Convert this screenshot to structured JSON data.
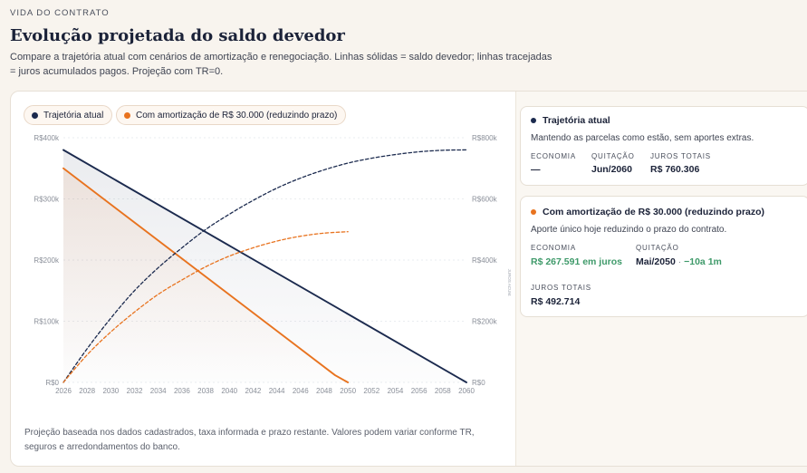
{
  "header": {
    "eyebrow": "VIDA DO CONTRATO",
    "title": "Evolução projetada do saldo devedor",
    "subtitle": "Compare a trajetória atual com cenários de amortização e renegociação. Linhas sólidas = saldo devedor; linhas tracejadas = juros acumulados pagos. Projeção com TR=0."
  },
  "legend": {
    "items": [
      {
        "label": "Trajetória atual",
        "color": "#1b2a4e"
      },
      {
        "label": "Com amortização de R$ 30.000 (reduzindo prazo)",
        "color": "#e8731f"
      }
    ]
  },
  "footnote": "Projeção baseada nos dados cadastrados, taxa informada e prazo restante. Valores podem variar conforme TR, seguros e arredondamentos do banco.",
  "chart_data": {
    "type": "line",
    "x_ticks": [
      "2026",
      "2028",
      "2030",
      "2032",
      "2034",
      "2036",
      "2038",
      "2040",
      "2042",
      "2044",
      "2046",
      "2048",
      "2050",
      "2052",
      "2054",
      "2056",
      "2058",
      "2060"
    ],
    "xlim": [
      2026,
      2060
    ],
    "y_left": {
      "ticks": [
        "R$0",
        "R$100k",
        "R$200k",
        "R$300k",
        "R$400k"
      ],
      "lim": [
        0,
        400000
      ],
      "label": ""
    },
    "y_right": {
      "ticks": [
        "R$0",
        "R$200k",
        "R$400k",
        "R$600k",
        "R$800k"
      ],
      "lim": [
        0,
        800000
      ],
      "label": "JUROS ACUM."
    },
    "series": [
      {
        "name": "Trajetória atual",
        "kind": "saldo",
        "axis": "left",
        "color": "#1b2a4e",
        "style": "solid",
        "x": [
          2026,
          2060
        ],
        "y": [
          380000,
          0
        ]
      },
      {
        "name": "Com amortização de R$ 30.000 (reduzindo prazo)",
        "kind": "saldo",
        "axis": "left",
        "color": "#e8731f",
        "style": "solid",
        "x": [
          2026,
          2048.9,
          2050
        ],
        "y": [
          350000,
          12000,
          0
        ]
      },
      {
        "name": "Trajetória atual",
        "kind": "juros",
        "axis": "right",
        "color": "#1b2a4e",
        "style": "dashed",
        "x": [
          2026,
          2028,
          2030,
          2032,
          2034,
          2036,
          2038,
          2040,
          2042,
          2044,
          2046,
          2048,
          2050,
          2052,
          2054,
          2056,
          2058,
          2060
        ],
        "y": [
          0,
          110000,
          210000,
          300000,
          375000,
          440000,
          500000,
          550000,
          595000,
          635000,
          668000,
          695000,
          717000,
          733000,
          745000,
          754000,
          759000,
          760306
        ]
      },
      {
        "name": "Com amortização de R$ 30.000 (reduzindo prazo)",
        "kind": "juros",
        "axis": "right",
        "color": "#e8731f",
        "style": "dashed",
        "x": [
          2026,
          2028,
          2030,
          2032,
          2034,
          2036,
          2038,
          2040,
          2042,
          2044,
          2046,
          2048,
          2050
        ],
        "y": [
          0,
          90000,
          165000,
          230000,
          288000,
          335000,
          378000,
          413000,
          440000,
          462000,
          478000,
          488000,
          492714
        ]
      }
    ]
  },
  "cards": [
    {
      "title": "Trajetória atual",
      "color": "#1b2a4e",
      "description": "Mantendo as parcelas como estão, sem aportes extras.",
      "stats": [
        {
          "label": "ECONOMIA",
          "value": "—"
        },
        {
          "label": "QUITAÇÃO",
          "value": "Jun/2060"
        },
        {
          "label": "JUROS TOTAIS",
          "value": "R$ 760.306"
        }
      ]
    },
    {
      "title": "Com amortização de R$ 30.000 (reduzindo prazo)",
      "color": "#e8731f",
      "description": "Aporte único hoje reduzindo o prazo do contrato.",
      "stats": [
        {
          "label": "ECONOMIA",
          "value": "R$ 267.591 em juros"
        },
        {
          "label": "QUITAÇÃO",
          "value": "Mai/2050",
          "delta": "−10a 1m"
        },
        {
          "label": "JUROS TOTAIS",
          "value": "R$ 492.714"
        }
      ]
    }
  ]
}
